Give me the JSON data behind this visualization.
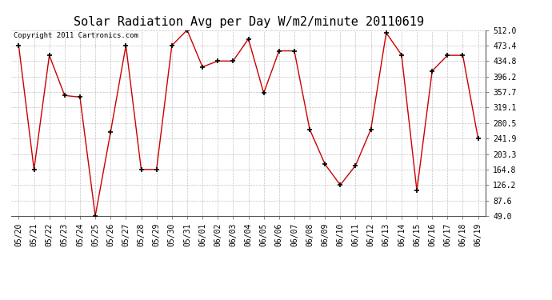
{
  "title": "Solar Radiation Avg per Day W/m2/minute 20110619",
  "copyright": "Copyright 2011 Cartronics.com",
  "dates": [
    "05/20",
    "05/21",
    "05/22",
    "05/23",
    "05/24",
    "05/25",
    "05/26",
    "05/27",
    "05/28",
    "05/29",
    "05/30",
    "05/31",
    "06/01",
    "06/02",
    "06/03",
    "06/04",
    "06/05",
    "06/06",
    "06/07",
    "06/08",
    "06/09",
    "06/10",
    "06/11",
    "06/12",
    "06/13",
    "06/14",
    "06/15",
    "06/16",
    "06/17",
    "06/18",
    "06/19"
  ],
  "values": [
    473.4,
    164.8,
    449.0,
    349.0,
    345.0,
    49.0,
    258.0,
    473.4,
    164.8,
    164.8,
    473.4,
    512.0,
    420.0,
    434.8,
    434.8,
    490.0,
    355.0,
    460.0,
    460.0,
    265.0,
    178.0,
    126.2,
    175.0,
    265.0,
    505.0,
    450.0,
    112.0,
    410.0,
    449.0,
    449.0,
    241.9
  ],
  "line_color": "#cc0000",
  "marker_color": "#000000",
  "bg_color": "#ffffff",
  "plot_bg_color": "#ffffff",
  "grid_color": "#aaaaaa",
  "yticks": [
    49.0,
    87.6,
    126.2,
    164.8,
    203.3,
    241.9,
    280.5,
    319.1,
    357.7,
    396.2,
    434.8,
    473.4,
    512.0
  ],
  "ylim": [
    49.0,
    512.0
  ],
  "title_fontsize": 11,
  "tick_fontsize": 7,
  "copyright_fontsize": 6.5,
  "figwidth": 6.9,
  "figheight": 3.75,
  "dpi": 100
}
